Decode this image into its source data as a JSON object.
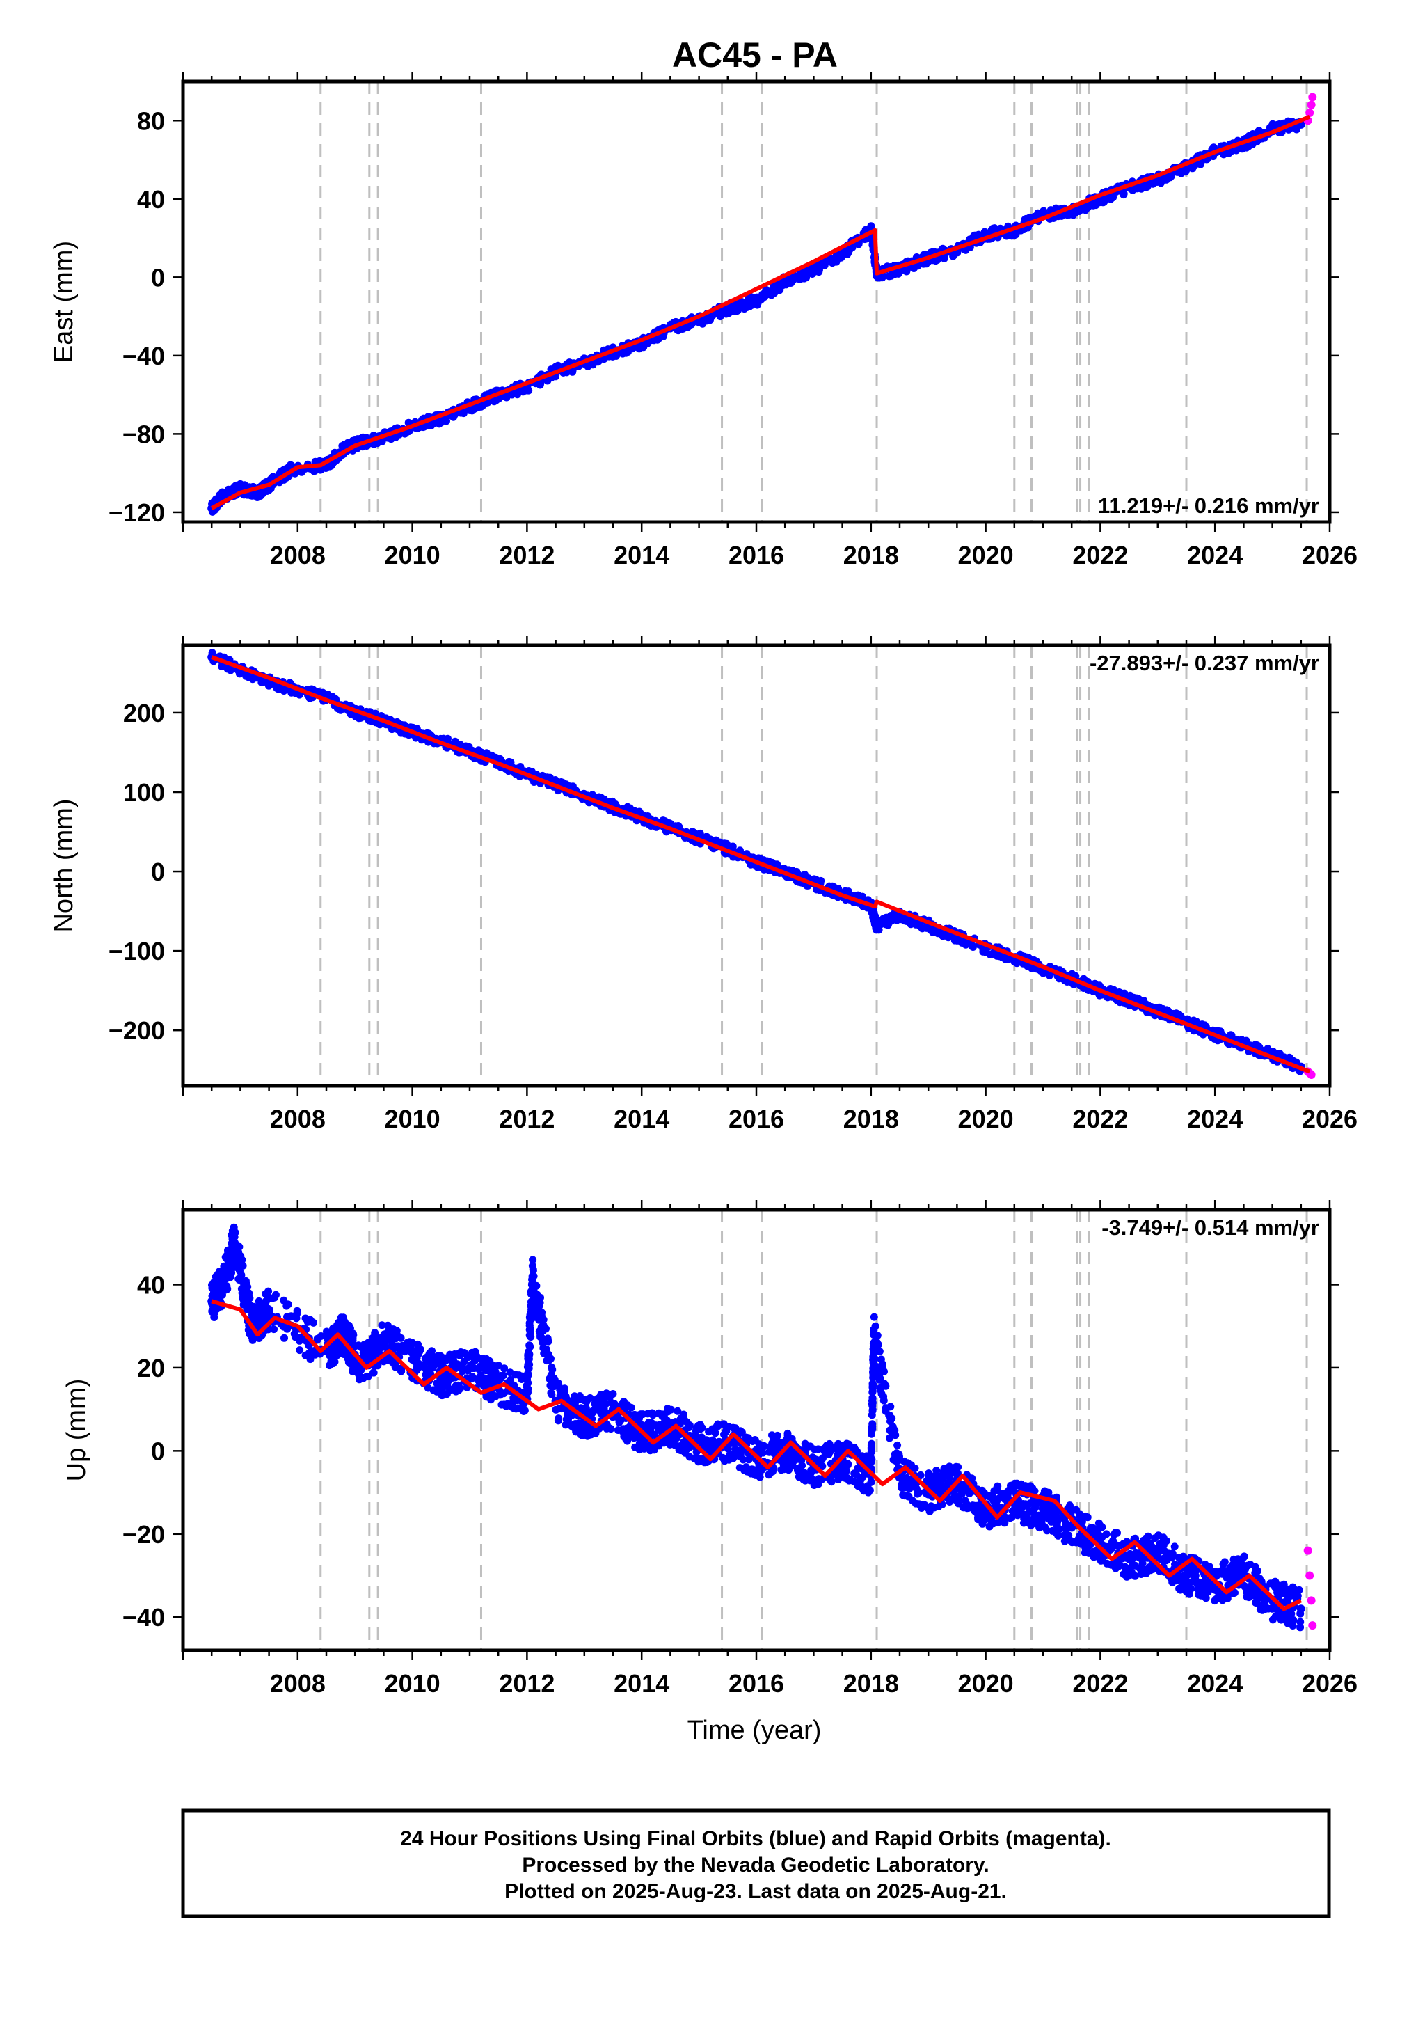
{
  "title": "AC45 - PA",
  "xlabel": "Time (year)",
  "x_ticks": [
    2008,
    2010,
    2012,
    2014,
    2016,
    2018,
    2020,
    2022,
    2024,
    2026
  ],
  "x_range": [
    2006.0,
    2026.0
  ],
  "colors": {
    "final_orbits": "#0000ff",
    "rapid_orbits": "#ff00ff",
    "model": "#ff0000",
    "event_lines": "#bfbfbf"
  },
  "event_lines_x": [
    2008.4,
    2009.25,
    2009.4,
    2011.2,
    2015.4,
    2016.1,
    2018.1,
    2020.5,
    2020.8,
    2021.6,
    2021.65,
    2021.8,
    2023.5,
    2025.6
  ],
  "caption": {
    "line1": "24 Hour Positions Using Final Orbits (blue) and Rapid Orbits (magenta).",
    "line2": "Processed by the Nevada Geodetic Laboratory.",
    "line3": "Plotted on 2025-Aug-23. Last data on 2025-Aug-21."
  },
  "chart_data": [
    {
      "type": "scatter",
      "ylabel": "East (mm)",
      "rate": "11.219+/- 0.216 mm/yr",
      "ylim": [
        -125,
        100
      ],
      "y_ticks": [
        -120,
        -80,
        -40,
        0,
        40,
        80
      ],
      "series": [
        {
          "name": "Final Orbits (blue)",
          "x": [
            2006.5,
            2006.7,
            2007.0,
            2007.3,
            2007.6,
            2007.9,
            2008.5,
            2008.8,
            2009.1,
            2009.5,
            2010.0,
            2010.5,
            2011.0,
            2011.5,
            2012.0,
            2012.5,
            2013.0,
            2013.5,
            2014.0,
            2014.5,
            2015.0,
            2015.5,
            2016.0,
            2016.5,
            2017.0,
            2017.5,
            2018.0,
            2018.1,
            2018.5,
            2019.0,
            2019.5,
            2020.0,
            2020.5,
            2021.0,
            2021.5,
            2022.0,
            2022.5,
            2023.0,
            2023.5,
            2024.0,
            2024.5,
            2025.0,
            2025.5
          ],
          "values": [
            -118,
            -112,
            -108,
            -110,
            -104,
            -98,
            -96,
            -88,
            -84,
            -82,
            -76,
            -72,
            -66,
            -60,
            -56,
            -48,
            -44,
            -38,
            -34,
            -26,
            -22,
            -16,
            -12,
            -2,
            4,
            12,
            24,
            2,
            4,
            10,
            14,
            22,
            24,
            32,
            34,
            40,
            46,
            50,
            56,
            64,
            68,
            76,
            78
          ]
        },
        {
          "name": "Rapid Orbits (magenta)",
          "x": [
            2025.62,
            2025.65,
            2025.68,
            2025.7
          ],
          "values": [
            80,
            84,
            88,
            92
          ]
        },
        {
          "name": "Model",
          "x": [
            2006.5,
            2007.0,
            2007.5,
            2008.0,
            2008.4,
            2009.0,
            2010.0,
            2011.0,
            2012.0,
            2013.0,
            2014.0,
            2015.0,
            2016.0,
            2017.0,
            2018.07,
            2018.1,
            2019.0,
            2020.0,
            2021.0,
            2022.0,
            2023.0,
            2024.0,
            2025.0,
            2025.65
          ],
          "values": [
            -118,
            -110,
            -106,
            -97,
            -96,
            -86,
            -76,
            -65,
            -54,
            -43,
            -32,
            -20,
            -6,
            8,
            24,
            2,
            10,
            20,
            30,
            42,
            52,
            64,
            74,
            82
          ]
        }
      ]
    },
    {
      "type": "scatter",
      "ylabel": "North (mm)",
      "rate": "-27.893+/- 0.237 mm/yr",
      "ylim": [
        -270,
        285
      ],
      "y_ticks": [
        -200,
        -100,
        0,
        100,
        200
      ],
      "series": [
        {
          "name": "Final Orbits (blue)",
          "x": [
            2006.5,
            2007.0,
            2007.5,
            2008.0,
            2008.5,
            2009.0,
            2009.5,
            2010.0,
            2010.5,
            2011.0,
            2011.5,
            2012.0,
            2012.5,
            2013.0,
            2013.5,
            2014.0,
            2014.5,
            2015.0,
            2015.5,
            2016.0,
            2016.5,
            2017.0,
            2017.5,
            2018.0,
            2018.1,
            2018.5,
            2019.0,
            2019.5,
            2020.0,
            2020.5,
            2021.0,
            2021.5,
            2022.0,
            2022.5,
            2023.0,
            2023.5,
            2024.0,
            2024.5,
            2025.0,
            2025.5
          ],
          "values": [
            270,
            255,
            240,
            228,
            218,
            200,
            190,
            175,
            165,
            150,
            138,
            122,
            110,
            95,
            82,
            68,
            55,
            42,
            28,
            12,
            0,
            -15,
            -28,
            -42,
            -70,
            -55,
            -68,
            -82,
            -96,
            -108,
            -122,
            -135,
            -150,
            -162,
            -176,
            -190,
            -205,
            -218,
            -232,
            -246
          ]
        },
        {
          "name": "Rapid Orbits (magenta)",
          "x": [
            2025.62,
            2025.65,
            2025.68
          ],
          "values": [
            -252,
            -254,
            -256
          ]
        },
        {
          "name": "Model",
          "x": [
            2006.5,
            2007.5,
            2008.5,
            2009.5,
            2010.5,
            2011.5,
            2012.5,
            2013.5,
            2014.5,
            2015.5,
            2016.5,
            2017.5,
            2018.07,
            2018.1,
            2019.0,
            2020.0,
            2021.0,
            2022.0,
            2023.0,
            2024.0,
            2025.0,
            2025.65
          ],
          "values": [
            270,
            244,
            216,
            190,
            162,
            136,
            108,
            80,
            54,
            26,
            -2,
            -30,
            -44,
            -38,
            -64,
            -92,
            -120,
            -150,
            -178,
            -206,
            -234,
            -252
          ]
        }
      ]
    },
    {
      "type": "scatter",
      "ylabel": "Up (mm)",
      "xlabel": "Time (year)",
      "rate": "-3.749+/- 0.514 mm/yr",
      "ylim": [
        -48,
        58
      ],
      "y_ticks": [
        -40,
        -20,
        0,
        20,
        40
      ],
      "series": [
        {
          "name": "Final Orbits (blue)",
          "x": [
            2006.5,
            2006.7,
            2006.9,
            2007.2,
            2007.5,
            2008.5,
            2008.8,
            2009.1,
            2009.5,
            2010.0,
            2010.5,
            2011.0,
            2011.5,
            2012.0,
            2012.1,
            2012.5,
            2013.0,
            2013.5,
            2014.0,
            2014.5,
            2015.0,
            2015.5,
            2016.0,
            2016.5,
            2017.0,
            2017.5,
            2018.0,
            2018.05,
            2018.5,
            2019.0,
            2019.5,
            2020.0,
            2020.5,
            2021.0,
            2021.5,
            2022.0,
            2022.5,
            2023.0,
            2023.5,
            2024.0,
            2024.5,
            2025.0,
            2025.5
          ],
          "values": [
            36,
            40,
            50,
            30,
            34,
            24,
            28,
            20,
            26,
            22,
            18,
            20,
            16,
            14,
            42,
            12,
            8,
            10,
            4,
            6,
            2,
            2,
            -2,
            0,
            -4,
            -2,
            -6,
            28,
            -6,
            -10,
            -8,
            -14,
            -12,
            -14,
            -18,
            -22,
            -26,
            -24,
            -30,
            -32,
            -30,
            -36,
            -38
          ]
        },
        {
          "name": "Rapid Orbits (magenta)",
          "x": [
            2025.62,
            2025.65,
            2025.68,
            2025.7
          ],
          "values": [
            -24,
            -30,
            -36,
            -42
          ]
        },
        {
          "name": "Model",
          "x": [
            2006.5,
            2007.0,
            2007.3,
            2007.6,
            2008.0,
            2008.4,
            2008.7,
            2009.2,
            2009.6,
            2010.2,
            2010.6,
            2011.2,
            2011.6,
            2012.2,
            2012.6,
            2013.2,
            2013.6,
            2014.2,
            2014.6,
            2015.2,
            2015.6,
            2016.2,
            2016.6,
            2017.2,
            2017.6,
            2018.2,
            2018.6,
            2019.2,
            2019.6,
            2020.2,
            2020.6,
            2021.2,
            2021.6,
            2022.2,
            2022.6,
            2023.2,
            2023.6,
            2024.2,
            2024.6,
            2025.2,
            2025.5
          ],
          "values": [
            36,
            34,
            28,
            32,
            30,
            24,
            28,
            20,
            24,
            16,
            20,
            14,
            16,
            10,
            12,
            6,
            10,
            2,
            6,
            -2,
            4,
            -4,
            2,
            -6,
            0,
            -8,
            -4,
            -12,
            -6,
            -16,
            -10,
            -12,
            -18,
            -26,
            -22,
            -30,
            -26,
            -34,
            -30,
            -38,
            -36
          ]
        }
      ]
    }
  ]
}
